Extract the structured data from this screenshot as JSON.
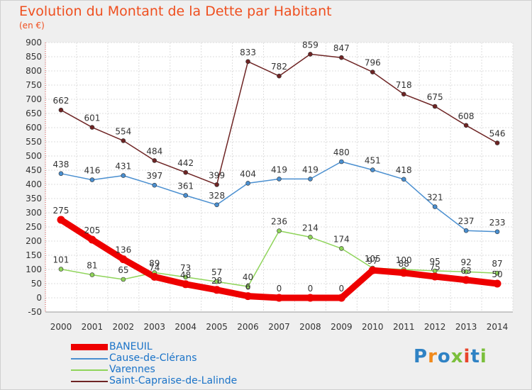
{
  "title": "Evolution du Montant de la Dette par Habitant",
  "unit": "(en €)",
  "logo": "Proxiti",
  "chart_data": {
    "type": "line",
    "x": [
      "2000",
      "2001",
      "2002",
      "2003",
      "2004",
      "2005",
      "2006",
      "2007",
      "2008",
      "2009",
      "2010",
      "2011",
      "2012",
      "2013",
      "2014"
    ],
    "ylim": [
      -50,
      900
    ],
    "yticks": [
      -50,
      0,
      50,
      100,
      150,
      200,
      250,
      300,
      350,
      400,
      450,
      500,
      550,
      600,
      650,
      700,
      750,
      800,
      850,
      900
    ],
    "grid": true,
    "legend_position": "bottom-left",
    "series": [
      {
        "name": "Saint-Capraise-de-Lalinde",
        "color": "#6e2424",
        "values": [
          662,
          601,
          554,
          484,
          442,
          399,
          833,
          782,
          859,
          847,
          796,
          718,
          675,
          608,
          546
        ],
        "labels": [
          "662",
          "601",
          "554",
          "484",
          "442",
          "399",
          "833",
          "782",
          "859",
          "847",
          "796",
          "718",
          "675",
          "608",
          "546"
        ]
      },
      {
        "name": "Cause-de-Clérans",
        "color": "#4a8fd0",
        "values": [
          438,
          416,
          431,
          397,
          361,
          328,
          404,
          419,
          419,
          480,
          451,
          418,
          321,
          237,
          233
        ],
        "labels": [
          "438",
          "416",
          "431",
          "397",
          "361",
          "328",
          "404",
          "419",
          "419",
          "480",
          "451",
          "418",
          "321",
          "237",
          "233"
        ]
      },
      {
        "name": "Varennes",
        "color": "#8fd45a",
        "values": [
          101,
          81,
          65,
          89,
          73,
          57,
          40,
          236,
          214,
          174,
          105,
          100,
          95,
          92,
          87
        ],
        "labels": [
          "101",
          "81",
          "65",
          "89",
          "73",
          "57",
          "40",
          "236",
          "214",
          "174",
          "105",
          "100",
          "95",
          "92",
          "87"
        ]
      },
      {
        "name": "BANEUIL",
        "color": "#ee0000",
        "values": [
          275,
          205,
          136,
          74,
          48,
          28,
          6,
          0,
          0,
          0,
          97,
          88,
          75,
          63,
          50
        ],
        "labels": [
          "275",
          "205",
          "136",
          "74",
          "48",
          "28",
          "6",
          "0",
          "0",
          "0",
          "97",
          "88",
          "75",
          "63",
          "50"
        ]
      }
    ]
  }
}
